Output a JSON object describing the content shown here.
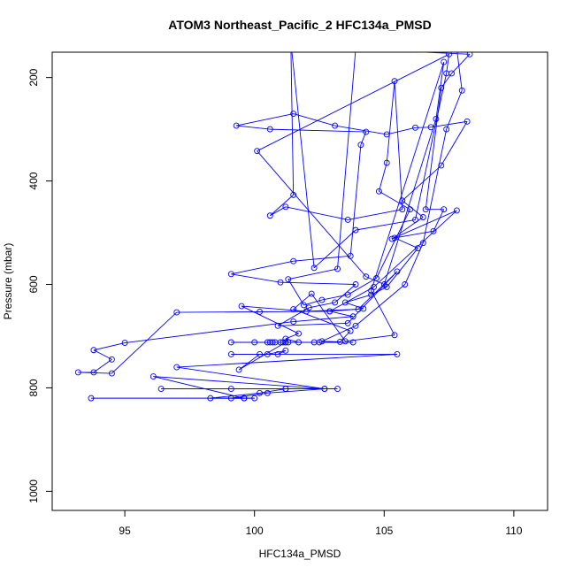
{
  "chart_data": {
    "type": "line",
    "title": "ATOM3 Northeast_Pacific_2 HFC134a_PMSD",
    "xlabel": "HFC134a_PMSD",
    "ylabel": "Pressure (mbar)",
    "xlim": [
      92.2,
      111.3
    ],
    "ylim": [
      1037,
      151
    ],
    "y_inverted": true,
    "x_ticks": [
      95,
      100,
      105,
      110
    ],
    "x_tick_labels": [
      "95",
      "100",
      "105",
      "110"
    ],
    "y_ticks": [
      200,
      400,
      600,
      800,
      1000
    ],
    "y_tick_labels": [
      "200",
      "400",
      "600",
      "800",
      "1000"
    ],
    "marker": "open-circle",
    "color": "#0000ff",
    "grid": false,
    "series": [
      {
        "points": [
          [
            93.7,
            820
          ],
          [
            99.6,
            820
          ],
          [
            100.0,
            820
          ],
          [
            99.1,
            820
          ],
          [
            100.5,
            810
          ],
          [
            102.7,
            802
          ],
          [
            101.2,
            802
          ],
          [
            103.2,
            802
          ],
          [
            96.4,
            802
          ],
          [
            99.1,
            802
          ],
          [
            101.2,
            802
          ],
          [
            100.2,
            810
          ],
          [
            98.3,
            820
          ],
          [
            99.6,
            820
          ],
          [
            96.1,
            778
          ],
          [
            102.7,
            802
          ],
          [
            97.0,
            760
          ],
          [
            105.5,
            735
          ],
          [
            99.1,
            735
          ],
          [
            100.5,
            735
          ],
          [
            101.2,
            728
          ],
          [
            100.9,
            735
          ],
          [
            100.2,
            735
          ],
          [
            99.4,
            765
          ],
          [
            101.2,
            712
          ],
          [
            99.1,
            712
          ],
          [
            100.0,
            712
          ],
          [
            100.5,
            712
          ],
          [
            100.6,
            712
          ],
          [
            100.7,
            712
          ],
          [
            100.8,
            712
          ],
          [
            101.0,
            712
          ],
          [
            101.1,
            712
          ],
          [
            101.2,
            712
          ],
          [
            101.3,
            712
          ],
          [
            102.3,
            712
          ],
          [
            102.5,
            712
          ],
          [
            103.8,
            712
          ],
          [
            101.7,
            712
          ],
          [
            101.2,
            705
          ],
          [
            101.7,
            695
          ],
          [
            99.5,
            642
          ],
          [
            102.0,
            652
          ],
          [
            104.0,
            648
          ],
          [
            105.5,
            575
          ],
          [
            103.6,
            675
          ],
          [
            100.9,
            680
          ],
          [
            102.1,
            645
          ],
          [
            103.1,
            635
          ],
          [
            103.9,
            600
          ],
          [
            101.0,
            596
          ],
          [
            99.1,
            580
          ],
          [
            101.5,
            555
          ],
          [
            103.7,
            545
          ],
          [
            104.1,
            330
          ],
          [
            104.3,
            305
          ],
          [
            100.6,
            300
          ],
          [
            99.3,
            293
          ],
          [
            101.5,
            270
          ],
          [
            103.1,
            293
          ],
          [
            105.1,
            310
          ],
          [
            106.2,
            297
          ],
          [
            106.8,
            296
          ],
          [
            108.2,
            285
          ],
          [
            107.2,
            370
          ],
          [
            105.7,
            438
          ],
          [
            106.5,
            470
          ],
          [
            105.3,
            512
          ],
          [
            107.8,
            457
          ],
          [
            104.6,
            605
          ],
          [
            102.9,
            652
          ],
          [
            103.8,
            662
          ],
          [
            101.5,
            672
          ],
          [
            95.0,
            713
          ],
          [
            93.8,
            727
          ],
          [
            94.5,
            745
          ],
          [
            93.8,
            770
          ],
          [
            93.2,
            770
          ],
          [
            94.5,
            772
          ],
          [
            97.0,
            654
          ],
          [
            100.2,
            653
          ],
          [
            102.9,
            652
          ],
          [
            104.2,
            647
          ],
          [
            103.5,
            635
          ],
          [
            104.5,
            620
          ],
          [
            105.1,
            605
          ],
          [
            106.3,
            530
          ],
          [
            105.4,
            510
          ],
          [
            106.9,
            497
          ],
          [
            107.3,
            455
          ],
          [
            106.6,
            455
          ],
          [
            107.2,
            220
          ],
          [
            107.6,
            192
          ],
          [
            108.3,
            155
          ],
          [
            103.9,
            145
          ],
          [
            103.2,
            570
          ],
          [
            101.3,
            590
          ],
          [
            101.9,
            640
          ],
          [
            102.6,
            630
          ],
          [
            103.6,
            620
          ],
          [
            104.7,
            588
          ],
          [
            106.0,
            455
          ],
          [
            104.8,
            420
          ],
          [
            105.1,
            365
          ],
          [
            105.4,
            207
          ],
          [
            105.7,
            455
          ],
          [
            103.6,
            475
          ],
          [
            101.2,
            450
          ],
          [
            100.6,
            467
          ],
          [
            101.5,
            427
          ],
          [
            101.4,
            130
          ],
          [
            102.3,
            568
          ],
          [
            103.9,
            495
          ],
          [
            106.2,
            475
          ],
          [
            107.4,
            192
          ],
          [
            107.5,
            155
          ],
          [
            100.1,
            342
          ],
          [
            104.3,
            585
          ],
          [
            105.0,
            600
          ],
          [
            107.0,
            280
          ],
          [
            107.3,
            170
          ],
          [
            104.5,
            612
          ],
          [
            105.4,
            698
          ],
          [
            103.5,
            710
          ],
          [
            102.2,
            618
          ],
          [
            101.5,
            648
          ],
          [
            103.7,
            690
          ],
          [
            103.3,
            711
          ],
          [
            102.6,
            710
          ],
          [
            103.9,
            680
          ],
          [
            105.8,
            600
          ],
          [
            106.5,
            520
          ],
          [
            107.4,
            300
          ],
          [
            108.0,
            225
          ],
          [
            107.8,
            145
          ]
        ]
      }
    ]
  }
}
